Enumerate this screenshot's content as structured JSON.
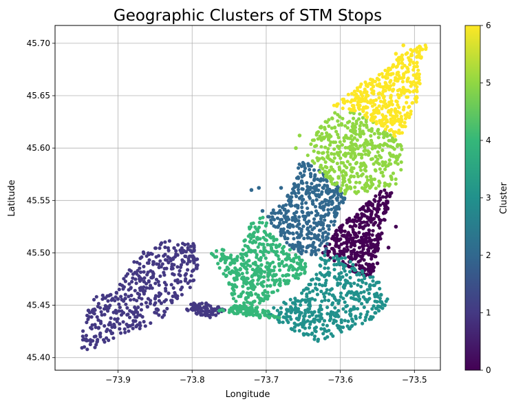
{
  "chart_data": {
    "type": "scatter",
    "title": "Geographic Clusters of STM Stops",
    "xlabel": "Longitude",
    "ylabel": "Latitude",
    "xlim": [
      -73.985,
      -73.465
    ],
    "ylim": [
      45.388,
      45.717
    ],
    "xticks": [
      -73.9,
      -73.8,
      -73.7,
      -73.6,
      -73.5
    ],
    "xtick_labels": [
      "−73.9",
      "−73.8",
      "−73.7",
      "−73.6",
      "−73.5"
    ],
    "yticks": [
      45.4,
      45.45,
      45.5,
      45.55,
      45.6,
      45.65,
      45.7
    ],
    "ytick_labels": [
      "45.40",
      "45.45",
      "45.50",
      "45.55",
      "45.60",
      "45.65",
      "45.70"
    ],
    "grid": true,
    "colorbar": {
      "label": "Cluster",
      "min": 0,
      "max": 6,
      "ticks": [
        0,
        1,
        2,
        3,
        4,
        5,
        6
      ],
      "tick_labels": [
        "0",
        "1",
        "2",
        "3",
        "4",
        "5",
        "6"
      ],
      "colormap": "viridis"
    },
    "cluster_colors": [
      "#440154",
      "#443983",
      "#31688e",
      "#21918c",
      "#35b779",
      "#90d743",
      "#fde725"
    ],
    "series": [
      {
        "cluster": 0,
        "polygon": [
          [
            -73.61,
            45.52
          ],
          [
            -73.545,
            45.56
          ],
          [
            -73.53,
            45.56
          ],
          [
            -73.545,
            45.515
          ],
          [
            -73.555,
            45.48
          ],
          [
            -73.57,
            45.478
          ],
          [
            -73.605,
            45.49
          ],
          [
            -73.625,
            45.5
          ]
        ],
        "outliers": [
          [
            -73.525,
            45.525
          ],
          [
            -73.535,
            45.505
          ],
          [
            -73.55,
            45.49
          ],
          [
            -73.56,
            45.478
          ]
        ]
      },
      {
        "cluster": 1,
        "polygon": [
          [
            -73.96,
            45.403
          ],
          [
            -73.93,
            45.41
          ],
          [
            -73.88,
            45.425
          ],
          [
            -73.855,
            45.432
          ],
          [
            -73.84,
            45.438
          ],
          [
            -73.83,
            45.45
          ],
          [
            -73.795,
            45.47
          ],
          [
            -73.79,
            45.505
          ],
          [
            -73.8,
            45.51
          ],
          [
            -73.835,
            45.512
          ],
          [
            -73.87,
            45.5
          ],
          [
            -73.9,
            45.47
          ],
          [
            -73.94,
            45.455
          ],
          [
            -73.945,
            45.43
          ],
          [
            -73.955,
            45.41
          ]
        ],
        "outliers": [
          [
            -73.91,
            45.46
          ],
          [
            -73.94,
            45.445
          ]
        ],
        "extras": [
          {
            "polygon": [
              [
                -73.81,
                45.445
              ],
              [
                -73.775,
                45.438
              ],
              [
                -73.755,
                45.445
              ],
              [
                -73.775,
                45.452
              ],
              [
                -73.8,
                45.452
              ]
            ]
          }
        ]
      },
      {
        "cluster": 2,
        "polygon": [
          [
            -73.655,
            45.59
          ],
          [
            -73.62,
            45.575
          ],
          [
            -73.59,
            45.555
          ],
          [
            -73.605,
            45.535
          ],
          [
            -73.62,
            45.5
          ],
          [
            -73.645,
            45.495
          ],
          [
            -73.675,
            45.51
          ],
          [
            -73.7,
            45.535
          ],
          [
            -73.675,
            45.55
          ],
          [
            -73.66,
            45.57
          ]
        ],
        "outliers": [
          [
            -73.72,
            45.56
          ],
          [
            -73.71,
            45.562
          ],
          [
            -73.68,
            45.562
          ],
          [
            -73.705,
            45.54
          ]
        ]
      },
      {
        "cluster": 3,
        "polygon": [
          [
            -73.59,
            45.495
          ],
          [
            -73.55,
            45.475
          ],
          [
            -73.535,
            45.455
          ],
          [
            -73.55,
            45.44
          ],
          [
            -73.58,
            45.428
          ],
          [
            -73.63,
            45.415
          ],
          [
            -73.66,
            45.425
          ],
          [
            -73.7,
            45.44
          ],
          [
            -73.69,
            45.448
          ],
          [
            -73.655,
            45.46
          ],
          [
            -73.635,
            45.48
          ],
          [
            -73.625,
            45.5
          ]
        ],
        "outliers": [
          [
            -73.545,
            45.46
          ],
          [
            -73.54,
            45.45
          ]
        ]
      },
      {
        "cluster": 4,
        "polygon": [
          [
            -73.74,
            45.495
          ],
          [
            -73.72,
            45.53
          ],
          [
            -73.705,
            45.535
          ],
          [
            -73.68,
            45.51
          ],
          [
            -73.645,
            45.49
          ],
          [
            -73.65,
            45.475
          ],
          [
            -73.67,
            45.47
          ],
          [
            -73.7,
            45.455
          ],
          [
            -73.72,
            45.44
          ],
          [
            -73.74,
            45.445
          ],
          [
            -73.755,
            45.475
          ],
          [
            -73.775,
            45.5
          ],
          [
            -73.755,
            45.505
          ]
        ],
        "outliers": [
          [
            -73.74,
            45.48
          ],
          [
            -73.72,
            45.46
          ]
        ],
        "extras": [
          {
            "polygon": [
              [
                -73.765,
                45.445
              ],
              [
                -73.71,
                45.438
              ],
              [
                -73.68,
                45.438
              ],
              [
                -73.7,
                45.446
              ],
              [
                -73.74,
                45.45
              ]
            ]
          }
        ]
      },
      {
        "cluster": 5,
        "polygon": [
          [
            -73.64,
            45.61
          ],
          [
            -73.61,
            45.635
          ],
          [
            -73.58,
            45.635
          ],
          [
            -73.555,
            45.625
          ],
          [
            -73.53,
            45.612
          ],
          [
            -73.515,
            45.6
          ],
          [
            -73.515,
            45.585
          ],
          [
            -73.525,
            45.565
          ],
          [
            -73.545,
            45.56
          ],
          [
            -73.57,
            45.555
          ],
          [
            -73.595,
            45.555
          ],
          [
            -73.625,
            45.575
          ],
          [
            -73.645,
            45.59
          ]
        ],
        "outliers": [
          [
            -73.655,
            45.612
          ],
          [
            -73.66,
            45.6
          ]
        ]
      },
      {
        "cluster": 6,
        "polygon": [
          [
            -73.61,
            45.64
          ],
          [
            -73.575,
            45.66
          ],
          [
            -73.545,
            45.672
          ],
          [
            -73.515,
            45.69
          ],
          [
            -73.5,
            45.7
          ],
          [
            -73.48,
            45.7
          ],
          [
            -73.495,
            45.68
          ],
          [
            -73.49,
            45.655
          ],
          [
            -73.5,
            45.64
          ],
          [
            -73.515,
            45.615
          ],
          [
            -73.525,
            45.61
          ],
          [
            -73.555,
            45.625
          ],
          [
            -73.58,
            45.635
          ]
        ],
        "outliers": [
          [
            -73.515,
            45.698
          ],
          [
            -73.525,
            45.69
          ]
        ]
      }
    ]
  }
}
